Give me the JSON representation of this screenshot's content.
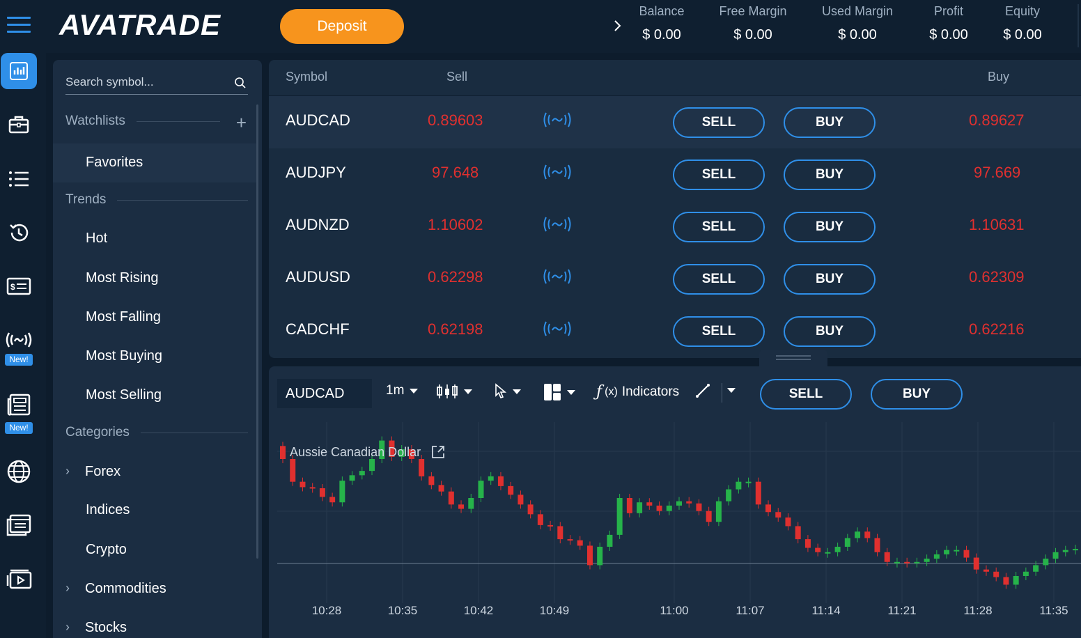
{
  "topbar": {
    "logo": "AVATRADE",
    "deposit_label": "Deposit",
    "metrics": [
      {
        "label": "Balance",
        "value": "$ 0.00"
      },
      {
        "label": "Free Margin",
        "value": "$ 0.00"
      },
      {
        "label": "Used Margin",
        "value": "$ 0.00"
      },
      {
        "label": "Profit",
        "value": "$ 0.00"
      },
      {
        "label": "Equity",
        "value": "$ 0.00"
      }
    ]
  },
  "rail": {
    "items": [
      "chart-icon",
      "briefcase-icon",
      "list-icon",
      "history-icon",
      "ticket-icon",
      "signal-icon",
      "news-icon",
      "globe-icon",
      "browser-icon",
      "video-icon",
      "chat-icon"
    ],
    "new_label": "New!"
  },
  "watchlist": {
    "search_placeholder": "Search symbol...",
    "watchlists_label": "Watchlists",
    "favorites": "Favorites",
    "trends_label": "Trends",
    "trends": [
      "Hot",
      "Most Rising",
      "Most Falling",
      "Most Buying",
      "Most Selling"
    ],
    "categories_label": "Categories",
    "categories": [
      "Forex",
      "Indices",
      "Crypto",
      "Commodities",
      "Stocks"
    ]
  },
  "table": {
    "headers": {
      "symbol": "Symbol",
      "sell": "Sell",
      "buy": "Buy"
    },
    "sell_button": "SELL",
    "buy_button": "BUY",
    "rows": [
      {
        "symbol": "AUDCAD",
        "sell": "0.89603",
        "buy": "0.89627"
      },
      {
        "symbol": "AUDJPY",
        "sell": "97.648",
        "buy": "97.669"
      },
      {
        "symbol": "AUDNZD",
        "sell": "1.10602",
        "buy": "1.10631"
      },
      {
        "symbol": "AUDUSD",
        "sell": "0.62298",
        "buy": "0.62309"
      },
      {
        "symbol": "CADCHF",
        "sell": "0.62198",
        "buy": "0.62216"
      }
    ],
    "price_color": "#e0302f"
  },
  "chart_toolbar": {
    "symbol": "AUDCAD",
    "interval": "1m",
    "indicators_label": "Indicators",
    "sell_button": "SELL",
    "buy_button": "BUY"
  },
  "chart_data": {
    "type": "candlestick",
    "title": "Aussie Canadian Dollar",
    "x_ticks": [
      "10:28",
      "10:35",
      "10:42",
      "10:49",
      "11:00",
      "11:07",
      "11:14",
      "11:21",
      "11:28",
      "11:35"
    ],
    "colors": {
      "up": "#26b34a",
      "down": "#e0302f"
    },
    "candles": [
      {
        "o": 0.89688,
        "c": 0.89676
      },
      {
        "o": 0.89676,
        "c": 0.89655
      },
      {
        "o": 0.89655,
        "c": 0.8965
      },
      {
        "o": 0.8965,
        "c": 0.89649
      },
      {
        "o": 0.89649,
        "c": 0.89641
      },
      {
        "o": 0.89641,
        "c": 0.89636
      },
      {
        "o": 0.89636,
        "c": 0.89656
      },
      {
        "o": 0.89656,
        "c": 0.89661
      },
      {
        "o": 0.89661,
        "c": 0.89665
      },
      {
        "o": 0.89665,
        "c": 0.89676
      },
      {
        "o": 0.89676,
        "c": 0.89693
      },
      {
        "o": 0.89693,
        "c": 0.89678
      },
      {
        "o": 0.89678,
        "c": 0.89685
      },
      {
        "o": 0.89685,
        "c": 0.89676
      },
      {
        "o": 0.89676,
        "c": 0.8966
      },
      {
        "o": 0.8966,
        "c": 0.89652
      },
      {
        "o": 0.89652,
        "c": 0.89646
      },
      {
        "o": 0.89646,
        "c": 0.89634
      },
      {
        "o": 0.89634,
        "c": 0.8963
      },
      {
        "o": 0.8963,
        "c": 0.8964
      },
      {
        "o": 0.8964,
        "c": 0.89656
      },
      {
        "o": 0.89656,
        "c": 0.8966
      },
      {
        "o": 0.8966,
        "c": 0.89651
      },
      {
        "o": 0.89651,
        "c": 0.89643
      },
      {
        "o": 0.89643,
        "c": 0.89634
      },
      {
        "o": 0.89634,
        "c": 0.89625
      },
      {
        "o": 0.89625,
        "c": 0.89615
      },
      {
        "o": 0.89615,
        "c": 0.89614
      },
      {
        "o": 0.89614,
        "c": 0.89602
      },
      {
        "o": 0.89602,
        "c": 0.89601
      },
      {
        "o": 0.89601,
        "c": 0.89596
      },
      {
        "o": 0.89596,
        "c": 0.89578
      },
      {
        "o": 0.89578,
        "c": 0.89595
      },
      {
        "o": 0.89595,
        "c": 0.89606
      },
      {
        "o": 0.89606,
        "c": 0.8964
      },
      {
        "o": 0.8964,
        "c": 0.89626
      },
      {
        "o": 0.89626,
        "c": 0.89636
      },
      {
        "o": 0.89636,
        "c": 0.89633
      },
      {
        "o": 0.89633,
        "c": 0.89628
      },
      {
        "o": 0.89628,
        "c": 0.89633
      },
      {
        "o": 0.89633,
        "c": 0.89637
      },
      {
        "o": 0.89637,
        "c": 0.89635
      },
      {
        "o": 0.89635,
        "c": 0.89628
      },
      {
        "o": 0.89628,
        "c": 0.89618
      },
      {
        "o": 0.89618,
        "c": 0.89637
      },
      {
        "o": 0.89637,
        "c": 0.89648
      },
      {
        "o": 0.89648,
        "c": 0.89655
      },
      {
        "o": 0.89655,
        "c": 0.89655
      },
      {
        "o": 0.89655,
        "c": 0.89634
      },
      {
        "o": 0.89634,
        "c": 0.89627
      },
      {
        "o": 0.89627,
        "c": 0.89622
      },
      {
        "o": 0.89622,
        "c": 0.89614
      },
      {
        "o": 0.89614,
        "c": 0.89602
      },
      {
        "o": 0.89602,
        "c": 0.89594
      },
      {
        "o": 0.89594,
        "c": 0.8959
      },
      {
        "o": 0.8959,
        "c": 0.8959
      },
      {
        "o": 0.8959,
        "c": 0.89595
      },
      {
        "o": 0.89595,
        "c": 0.89603
      },
      {
        "o": 0.89603,
        "c": 0.89609
      },
      {
        "o": 0.89609,
        "c": 0.89603
      },
      {
        "o": 0.89603,
        "c": 0.8959
      },
      {
        "o": 0.8959,
        "c": 0.89581
      },
      {
        "o": 0.89581,
        "c": 0.89581
      },
      {
        "o": 0.89581,
        "c": 0.8958
      },
      {
        "o": 0.8958,
        "c": 0.89581
      },
      {
        "o": 0.89581,
        "c": 0.89584
      },
      {
        "o": 0.89584,
        "c": 0.89588
      },
      {
        "o": 0.89588,
        "c": 0.89592
      },
      {
        "o": 0.89592,
        "c": 0.89592
      },
      {
        "o": 0.89592,
        "c": 0.89585
      },
      {
        "o": 0.89585,
        "c": 0.89574
      },
      {
        "o": 0.89574,
        "c": 0.89572
      },
      {
        "o": 0.89572,
        "c": 0.89567
      },
      {
        "o": 0.89567,
        "c": 0.8956
      },
      {
        "o": 0.8956,
        "c": 0.89568
      },
      {
        "o": 0.89568,
        "c": 0.89572
      },
      {
        "o": 0.89572,
        "c": 0.89578
      },
      {
        "o": 0.89578,
        "c": 0.89584
      },
      {
        "o": 0.89584,
        "c": 0.8959
      },
      {
        "o": 0.8959,
        "c": 0.89592
      },
      {
        "o": 0.89592,
        "c": 0.89593
      }
    ]
  }
}
